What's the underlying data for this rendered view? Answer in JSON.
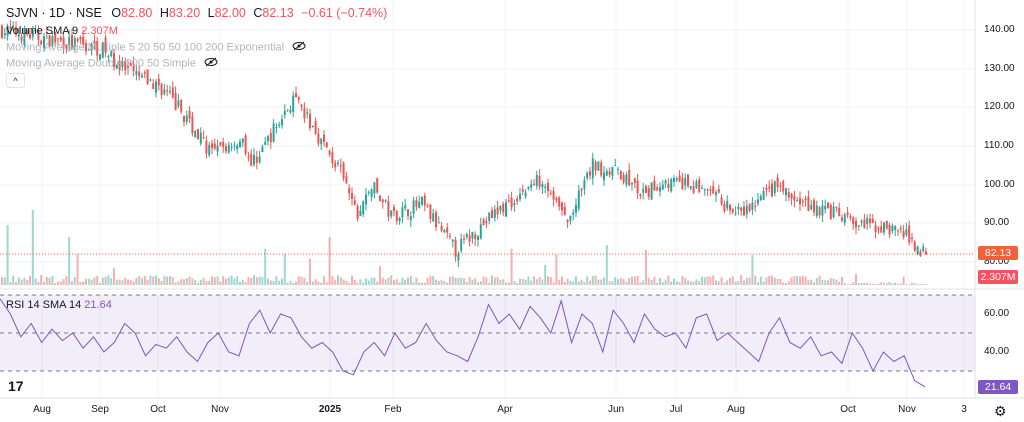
{
  "legend": {
    "symbol": "SJVN · 1D · NSE",
    "o_label": "O",
    "open": "82.80",
    "h_label": "H",
    "high": "83.20",
    "l_label": "L",
    "low": "82.00",
    "c_label": "C",
    "close": "82.13",
    "change": "−0.61 (−0.74%)",
    "volume_label": "Volume SMA 9",
    "volume_value": "2.307M",
    "ma_multiple": "Moving Average Multiple 5 20 50 50 100 200 Exponential",
    "ma_double": "Moving Average Double 200 50 Simple"
  },
  "rsi_legend": {
    "label": "RSI 14 SMA 14",
    "value": "21.64"
  },
  "price_axis": [
    "140.00",
    "130.00",
    "120.00",
    "110.00",
    "100.00",
    "90.00",
    "80.00"
  ],
  "rsi_axis": [
    "60.00",
    "40.00"
  ],
  "badges": {
    "price": "82.13",
    "volume": "2.307M",
    "rsi": "21.64"
  },
  "time_axis": [
    "Aug",
    "Sep",
    "Oct",
    "Nov",
    "2025",
    "Feb",
    "Apr",
    "Jun",
    "Jul",
    "Aug",
    "Oct",
    "Nov",
    "3"
  ],
  "colors": {
    "up": "#26a69a",
    "down": "#ef5350",
    "rsi": "#7e57c2",
    "price_badge": "#f0623a",
    "volume_badge": "#f7525f"
  },
  "chart_data": {
    "type": "candlestick",
    "symbol": "SJVN",
    "interval": "1D",
    "price_range": [
      78,
      143
    ],
    "close_waypoints": [
      [
        0,
        140
      ],
      [
        14,
        138
      ],
      [
        36,
        135
      ],
      [
        43,
        130
      ],
      [
        57,
        125
      ],
      [
        63,
        120
      ],
      [
        75,
        108
      ],
      [
        86,
        112
      ],
      [
        89,
        105
      ],
      [
        104,
        122
      ],
      [
        111,
        115
      ],
      [
        121,
        103
      ],
      [
        127,
        92
      ],
      [
        132,
        100
      ],
      [
        139,
        92
      ],
      [
        150,
        95
      ],
      [
        162,
        83
      ],
      [
        175,
        92
      ],
      [
        182,
        96
      ],
      [
        193,
        102
      ],
      [
        202,
        90
      ],
      [
        211,
        105
      ],
      [
        221,
        103
      ],
      [
        229,
        97
      ],
      [
        236,
        101
      ],
      [
        250,
        99
      ],
      [
        264,
        92
      ],
      [
        277,
        100
      ],
      [
        282,
        96
      ],
      [
        296,
        93
      ],
      [
        304,
        90
      ],
      [
        314,
        89
      ],
      [
        321,
        88
      ],
      [
        330,
        82.13
      ]
    ],
    "rsi_range": [
      15,
      75
    ],
    "rsi_bands": [
      30,
      70
    ],
    "rsi": [
      68,
      60,
      48,
      55,
      45,
      52,
      46,
      50,
      42,
      48,
      40,
      45,
      55,
      50,
      38,
      44,
      42,
      48,
      40,
      35,
      45,
      50,
      40,
      38,
      55,
      62,
      50,
      60,
      58,
      48,
      42,
      45,
      40,
      30,
      28,
      40,
      45,
      38,
      50,
      42,
      45,
      55,
      46,
      40,
      38,
      35,
      48,
      65,
      55,
      60,
      52,
      64,
      58,
      50,
      67,
      45,
      60,
      55,
      40,
      62,
      55,
      45,
      60,
      52,
      48,
      50,
      42,
      58,
      60,
      46,
      50,
      45,
      40,
      35,
      50,
      58,
      45,
      42,
      48,
      38,
      40,
      34,
      50,
      42,
      30,
      40,
      35,
      38,
      25,
      21.64
    ]
  }
}
